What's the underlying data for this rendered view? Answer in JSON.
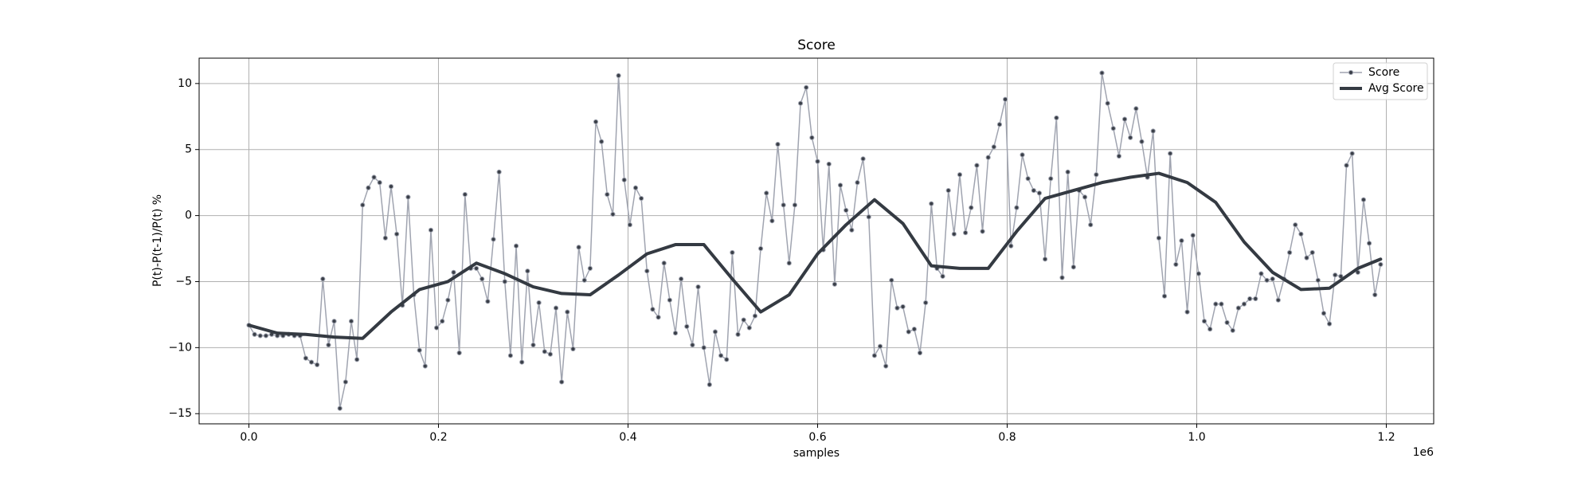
{
  "chart_data": {
    "type": "line",
    "title": "Score",
    "xlabel": "samples",
    "ylabel": "P(t)-P(t-1)/P(t) %",
    "x_offset_label": "1e6",
    "xlim": [
      -52500,
      1250000
    ],
    "ylim": [
      -15.77,
      11.92
    ],
    "xticks": [
      {
        "value": 0,
        "label": "0.0"
      },
      {
        "value": 200000,
        "label": "0.2"
      },
      {
        "value": 400000,
        "label": "0.4"
      },
      {
        "value": 600000,
        "label": "0.6"
      },
      {
        "value": 800000,
        "label": "0.8"
      },
      {
        "value": 1000000,
        "label": "1.0"
      },
      {
        "value": 1200000,
        "label": "1.2"
      }
    ],
    "yticks": [
      {
        "value": -15,
        "label": "−15"
      },
      {
        "value": -10,
        "label": "−10"
      },
      {
        "value": -5,
        "label": "−5"
      },
      0,
      5,
      10
    ],
    "grid": true,
    "legend": "upper right",
    "series": [
      {
        "name": "Score",
        "color": "#a0a4b0",
        "marker_color": "#3a3f48",
        "line_width": 1.5,
        "markers": true,
        "x": [
          0,
          6000,
          12000,
          18000,
          24000,
          30000,
          36000,
          42000,
          48000,
          54000,
          60000,
          66000,
          72000,
          78000,
          84000,
          90000,
          96000,
          102000,
          108000,
          114000,
          120000,
          126000,
          132000,
          138000,
          144000,
          150000,
          156000,
          162000,
          168000,
          174000,
          180000,
          186000,
          192000,
          198000,
          204000,
          210000,
          216000,
          222000,
          228000,
          234000,
          240000,
          246000,
          252000,
          258000,
          264000,
          270000,
          276000,
          282000,
          288000,
          294000,
          300000,
          306000,
          312000,
          318000,
          324000,
          330000,
          336000,
          342000,
          348000,
          354000,
          360000,
          366000,
          372000,
          378000,
          384000,
          390000,
          396000,
          402000,
          408000,
          414000,
          420000,
          426000,
          432000,
          438000,
          444000,
          450000,
          456000,
          462000,
          468000,
          474000,
          480000,
          486000,
          492000,
          498000,
          504000,
          510000,
          516000,
          522000,
          528000,
          534000,
          540000,
          546000,
          552000,
          558000,
          564000,
          570000,
          576000,
          582000,
          588000,
          594000,
          600000,
          606000,
          612000,
          618000,
          624000,
          630000,
          636000,
          642000,
          648000,
          654000,
          660000,
          666000,
          672000,
          678000,
          684000,
          690000,
          696000,
          702000,
          708000,
          714000,
          720000,
          726000,
          732000,
          738000,
          744000,
          750000,
          756000,
          762000,
          768000,
          774000,
          780000,
          786000,
          792000,
          798000,
          804000,
          810000,
          816000,
          822000,
          828000,
          834000,
          840000,
          846000,
          852000,
          858000,
          864000,
          870000,
          876000,
          882000,
          888000,
          894000,
          900000,
          906000,
          912000,
          918000,
          924000,
          930000,
          936000,
          942000,
          948000,
          954000,
          960000,
          966000,
          972000,
          978000,
          984000,
          990000,
          996000,
          1002000,
          1008000,
          1014000,
          1020000,
          1026000,
          1032000,
          1038000,
          1044000,
          1050000,
          1056000,
          1062000,
          1068000,
          1074000,
          1080000,
          1086000,
          1092000,
          1098000,
          1104000,
          1110000,
          1116000,
          1122000,
          1128000,
          1134000,
          1140000,
          1146000,
          1152000,
          1158000,
          1164000,
          1170000,
          1176000,
          1182000,
          1188000,
          1194000
        ],
        "values": [
          -8.3,
          -9.0,
          -9.1,
          -9.1,
          -9.0,
          -9.1,
          -9.1,
          -9.0,
          -9.1,
          -9.1,
          -10.8,
          -11.1,
          -11.3,
          -4.8,
          -9.8,
          -8.0,
          -14.6,
          -12.6,
          -8.0,
          -10.9,
          0.8,
          2.1,
          2.9,
          2.5,
          -1.7,
          2.2,
          -1.4,
          -6.8,
          1.4,
          -6.0,
          -10.2,
          -11.4,
          -1.1,
          -8.5,
          -8.0,
          -6.4,
          -4.3,
          -10.4,
          1.6,
          -4.0,
          -4.0,
          -4.8,
          -6.5,
          -1.8,
          3.3,
          -5.0,
          -10.6,
          -2.3,
          -11.1,
          -4.2,
          -9.8,
          -6.6,
          -10.3,
          -10.5,
          -7.0,
          -12.6,
          -7.3,
          -10.1,
          -2.4,
          -4.9,
          -4.0,
          7.1,
          5.6,
          1.6,
          0.1,
          10.6,
          2.7,
          -0.7,
          2.1,
          1.3,
          -4.2,
          -7.1,
          -7.7,
          -3.6,
          -6.4,
          -8.9,
          -4.8,
          -8.4,
          -9.8,
          -5.4,
          -10.0,
          -12.8,
          -8.8,
          -10.6,
          -10.9,
          -2.8,
          -9.0,
          -7.9,
          -8.5,
          -7.6,
          -2.5,
          1.7,
          -0.4,
          5.4,
          0.8,
          -3.6,
          0.8,
          8.5,
          9.7,
          5.9,
          4.1,
          -2.6,
          3.9,
          -5.2,
          2.3,
          0.4,
          -1.1,
          2.5,
          4.3,
          -0.1,
          -10.6,
          -9.9,
          -11.4,
          -4.9,
          -7.0,
          -6.9,
          -8.8,
          -8.6,
          -10.4,
          -6.6,
          0.9,
          -4.0,
          -4.6,
          1.9,
          -1.4,
          3.1,
          -1.3,
          0.6,
          3.8,
          -1.2,
          4.4,
          5.2,
          6.9,
          8.8,
          -2.3,
          0.6,
          4.6,
          2.8,
          1.9,
          1.7,
          -3.3,
          2.8,
          7.4,
          -4.7,
          3.3,
          -3.9,
          1.9,
          1.4,
          -0.7,
          3.1,
          10.8,
          8.5,
          6.6,
          4.5,
          7.3,
          5.9,
          8.1,
          5.6,
          2.9,
          6.4,
          -1.7,
          -6.1,
          4.7,
          -3.7,
          -1.9,
          -7.3,
          -1.5,
          -4.4,
          -8.0,
          -8.6,
          -6.7,
          -6.7,
          -8.1,
          -8.7,
          -7.0,
          -6.7,
          -6.3,
          -6.3,
          -4.4,
          -4.9,
          -4.8,
          -6.4,
          -4.8,
          -2.8,
          -0.7,
          -1.4,
          -3.2,
          -2.8,
          -4.9,
          -7.4,
          -8.2,
          -4.5,
          -4.6,
          3.8,
          4.7,
          -4.3,
          1.2,
          -2.1,
          -6.0,
          -3.7
        ]
      },
      {
        "name": "Avg Score",
        "color": "#343a42",
        "line_width": 4,
        "markers": false,
        "x": [
          0,
          30000,
          60000,
          90000,
          120000,
          150000,
          180000,
          210000,
          240000,
          270000,
          300000,
          330000,
          360000,
          390000,
          420000,
          450000,
          480000,
          510000,
          540000,
          570000,
          600000,
          630000,
          660000,
          690000,
          720000,
          750000,
          780000,
          810000,
          840000,
          870000,
          900000,
          930000,
          960000,
          990000,
          1020000,
          1050000,
          1080000,
          1110000,
          1140000,
          1170000,
          1194000
        ],
        "values": [
          -8.3,
          -8.9,
          -9.0,
          -9.2,
          -9.3,
          -7.3,
          -5.6,
          -5.0,
          -3.6,
          -4.4,
          -5.4,
          -5.9,
          -6.0,
          -4.5,
          -2.9,
          -2.2,
          -2.2,
          -4.8,
          -7.3,
          -6.0,
          -2.9,
          -0.7,
          1.2,
          -0.6,
          -3.8,
          -4.0,
          -4.0,
          -1.2,
          1.3,
          1.9,
          2.5,
          2.9,
          3.2,
          2.5,
          1.0,
          -2.0,
          -4.3,
          -5.6,
          -5.5,
          -4.0,
          -3.3
        ]
      }
    ]
  }
}
